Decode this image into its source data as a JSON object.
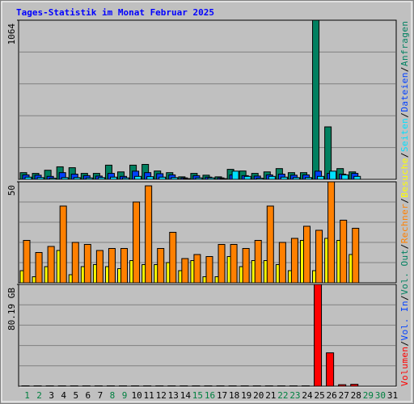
{
  "chart_data": [
    {
      "type": "bar",
      "title": "Tages-Statistik im Monat Februar 2025",
      "ylim": [
        0,
        1064
      ],
      "yticks": [
        1064
      ],
      "grid": 5,
      "series": [
        {
          "name": "Anfragen",
          "color": "#008060",
          "values": [
            45,
            40,
            61,
            84,
            78,
            40,
            40,
            95,
            50,
            95,
            100,
            56,
            45,
            17,
            40,
            28,
            17,
            67,
            56,
            40,
            50,
            72,
            45,
            45,
            1064,
            351,
            72,
            50,
            0,
            0,
            0
          ]
        },
        {
          "name": "Dateien",
          "color": "#0040ff",
          "values": [
            30,
            28,
            20,
            45,
            35,
            25,
            22,
            40,
            20,
            55,
            45,
            38,
            30,
            10,
            25,
            15,
            10,
            30,
            25,
            22,
            30,
            35,
            28,
            30,
            55,
            40,
            35,
            40,
            0,
            0,
            0
          ]
        },
        {
          "name": "Seiten",
          "color": "#00e0ff",
          "values": [
            15,
            12,
            8,
            12,
            12,
            10,
            12,
            15,
            10,
            20,
            18,
            15,
            12,
            5,
            10,
            10,
            5,
            55,
            20,
            8,
            20,
            15,
            12,
            12,
            20,
            55,
            30,
            20,
            0,
            0,
            0
          ]
        }
      ]
    },
    {
      "type": "bar",
      "ylim": [
        0,
        50
      ],
      "yticks": [
        50
      ],
      "grid": 5,
      "series": [
        {
          "name": "Besuche",
          "color": "#ffff00",
          "values": [
            6,
            3,
            8,
            16,
            4,
            8,
            9,
            8,
            7,
            11,
            9,
            9,
            10,
            6,
            11,
            3,
            3,
            13,
            8,
            11,
            11,
            9,
            6,
            21,
            6,
            22,
            21,
            14,
            0,
            0,
            0
          ]
        },
        {
          "name": "Rechner",
          "color": "#ff8000",
          "values": [
            21,
            15,
            18,
            38,
            20,
            19,
            16,
            17,
            17,
            40,
            48,
            17,
            25,
            12,
            14,
            13,
            19,
            19,
            17,
            21,
            38,
            20,
            22,
            28,
            26,
            50,
            31,
            27,
            0,
            0,
            0
          ]
        }
      ]
    },
    {
      "type": "bar",
      "ylim": [
        0,
        80.19
      ],
      "yticks": [
        {
          "value": 80.19,
          "label": "80.19 GB"
        }
      ],
      "grid": 5,
      "categories": [
        1,
        2,
        3,
        4,
        5,
        6,
        7,
        8,
        9,
        10,
        11,
        12,
        13,
        14,
        15,
        16,
        17,
        18,
        19,
        20,
        21,
        22,
        23,
        24,
        25,
        26,
        27,
        28,
        29,
        30,
        31
      ],
      "weekend_categories": [
        1,
        2,
        8,
        9,
        15,
        16,
        22,
        23,
        29,
        30
      ],
      "weekend_color": "#008040",
      "series": [
        {
          "name": "Volumen",
          "color": "#ff0000",
          "values": [
            0.3,
            0.3,
            0.3,
            0.3,
            0.3,
            0.3,
            0.3,
            0.3,
            0.3,
            0.3,
            0.3,
            0.3,
            0.3,
            0.3,
            0.3,
            0.3,
            0.3,
            0.3,
            0.3,
            0.3,
            0.3,
            0.3,
            0.3,
            0.3,
            80.19,
            26.3,
            1.2,
            1.5,
            0,
            0,
            0
          ]
        }
      ],
      "extra_legend": [
        {
          "name": "Vol. In",
          "color": "#0040ff"
        },
        {
          "name": "Vol. Out",
          "color": "#008060"
        }
      ],
      "legend_separator": "/"
    }
  ]
}
